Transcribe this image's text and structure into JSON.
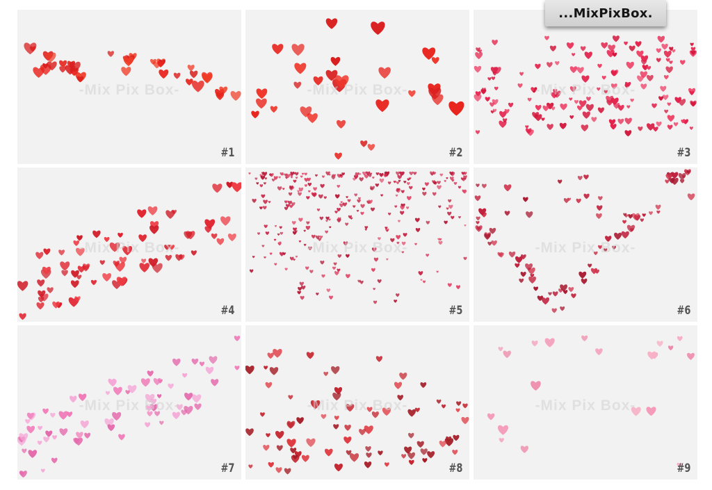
{
  "brand": {
    "name": "...MixPixBox."
  },
  "watermark_text": "-Mix Pix Box-",
  "panels": [
    {
      "label": "#1",
      "palette": [
        "#e8231c",
        "#d91f1f",
        "#f03a24"
      ],
      "count": 40,
      "size": 8,
      "seed": 11,
      "pattern": "wave"
    },
    {
      "label": "#2",
      "palette": [
        "#e8231c",
        "#f0362a",
        "#d92020"
      ],
      "count": 30,
      "size": 10,
      "seed": 23,
      "pattern": "spread"
    },
    {
      "label": "#3",
      "palette": [
        "#e3204a",
        "#ee3b62",
        "#d4163c"
      ],
      "count": 150,
      "size": 5,
      "seed": 37,
      "pattern": "band"
    },
    {
      "label": "#4",
      "palette": [
        "#e0202c",
        "#d01c28",
        "#ee3c44"
      ],
      "count": 70,
      "size": 7,
      "seed": 41,
      "pattern": "diagonal"
    },
    {
      "label": "#5",
      "palette": [
        "#c8284a",
        "#e04a6a",
        "#b81c3a"
      ],
      "count": 300,
      "size": 3,
      "seed": 53,
      "pattern": "top"
    },
    {
      "label": "#6",
      "palette": [
        "#c0203c",
        "#a81830",
        "#d2364e"
      ],
      "count": 90,
      "size": 5,
      "seed": 67,
      "pattern": "vee"
    },
    {
      "label": "#7",
      "palette": [
        "#f07ab8",
        "#f5a6d6",
        "#e46aac"
      ],
      "count": 70,
      "size": 6,
      "seed": 71,
      "pattern": "diagonal"
    },
    {
      "label": "#8",
      "palette": [
        "#c4242e",
        "#a41c26",
        "#e03c44"
      ],
      "count": 80,
      "size": 6,
      "seed": 83,
      "pattern": "bottom"
    },
    {
      "label": "#9",
      "palette": [
        "#f49ab8",
        "#f7b0c6",
        "#ee88a8"
      ],
      "count": 20,
      "size": 7,
      "seed": 97,
      "pattern": "spread"
    }
  ]
}
